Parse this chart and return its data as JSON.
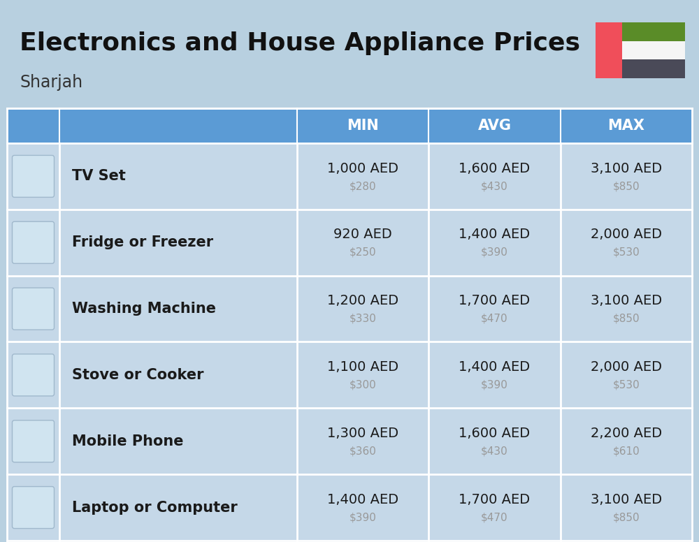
{
  "title": "Electronics and House Appliance Prices",
  "subtitle": "Sharjah",
  "background_color": "#b8d0e0",
  "header_color": "#5b9bd5",
  "header_text_color": "#ffffff",
  "row_bg": "#c5d8e8",
  "border_color": "#ffffff",
  "columns": [
    "MIN",
    "AVG",
    "MAX"
  ],
  "items": [
    {
      "name": "TV Set",
      "min_aed": "1,000 AED",
      "min_usd": "$280",
      "avg_aed": "1,600 AED",
      "avg_usd": "$430",
      "max_aed": "3,100 AED",
      "max_usd": "$850"
    },
    {
      "name": "Fridge or Freezer",
      "min_aed": "920 AED",
      "min_usd": "$250",
      "avg_aed": "1,400 AED",
      "avg_usd": "$390",
      "max_aed": "2,000 AED",
      "max_usd": "$530"
    },
    {
      "name": "Washing Machine",
      "min_aed": "1,200 AED",
      "min_usd": "$330",
      "avg_aed": "1,700 AED",
      "avg_usd": "$470",
      "max_aed": "3,100 AED",
      "max_usd": "$850"
    },
    {
      "name": "Stove or Cooker",
      "min_aed": "1,100 AED",
      "min_usd": "$300",
      "avg_aed": "1,400 AED",
      "avg_usd": "$390",
      "max_aed": "2,000 AED",
      "max_usd": "$530"
    },
    {
      "name": "Mobile Phone",
      "min_aed": "1,300 AED",
      "min_usd": "$360",
      "avg_aed": "1,600 AED",
      "avg_usd": "$430",
      "max_aed": "2,200 AED",
      "max_usd": "$610"
    },
    {
      "name": "Laptop or Computer",
      "min_aed": "1,400 AED",
      "min_usd": "$390",
      "avg_aed": "1,700 AED",
      "avg_usd": "$470",
      "max_aed": "3,100 AED",
      "max_usd": "$850"
    }
  ],
  "flag_red": "#f04e5a",
  "flag_green": "#5a8c28",
  "flag_white": "#f5f5f5",
  "flag_black": "#4a4a58",
  "title_fontsize": 26,
  "subtitle_fontsize": 17,
  "header_fontsize": 15,
  "name_fontsize": 15,
  "aed_fontsize": 14,
  "usd_fontsize": 11
}
